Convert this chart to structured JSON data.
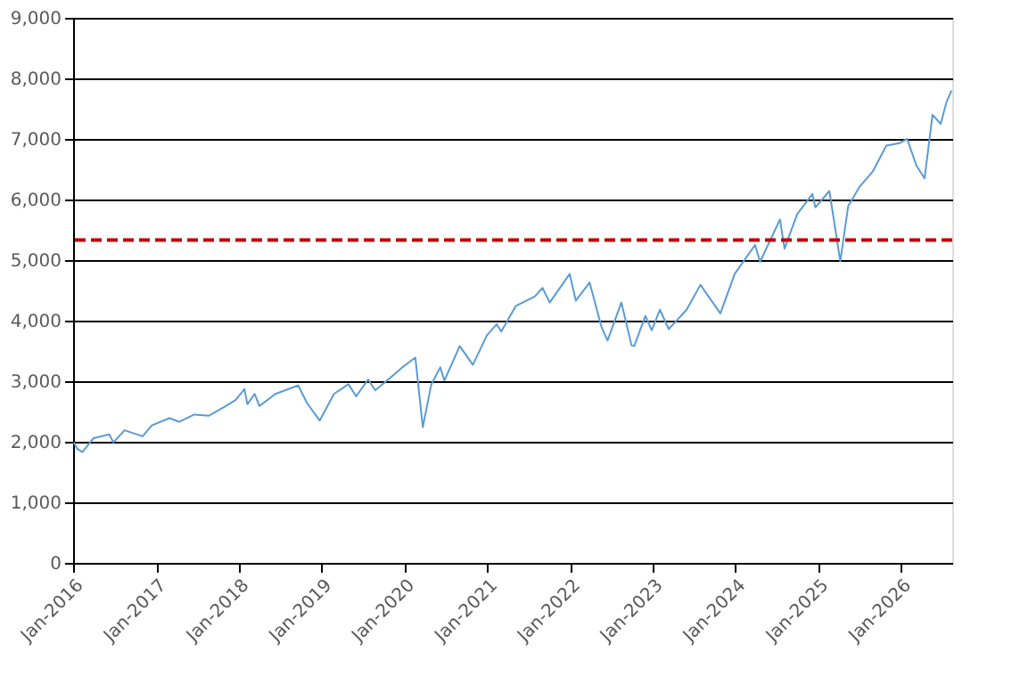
{
  "chart_data": {
    "type": "line",
    "x": [
      "2016-01-04",
      "2016-01-20",
      "2016-02-11",
      "2016-03-31",
      "2016-06-08",
      "2016-06-27",
      "2016-08-15",
      "2016-11-03",
      "2016-12-13",
      "2017-03-01",
      "2017-04-13",
      "2017-06-19",
      "2017-08-21",
      "2017-10-31",
      "2017-12-18",
      "2018-01-26",
      "2018-02-08",
      "2018-03-12",
      "2018-04-02",
      "2018-06-12",
      "2018-09-20",
      "2018-10-29",
      "2018-12-24",
      "2019-02-25",
      "2019-04-30",
      "2019-06-03",
      "2019-07-26",
      "2019-08-26",
      "2019-10-30",
      "2019-12-27",
      "2020-02-19",
      "2020-03-23",
      "2020-04-29",
      "2020-06-08",
      "2020-06-26",
      "2020-09-02",
      "2020-10-30",
      "2020-12-31",
      "2021-02-12",
      "2021-03-04",
      "2021-05-07",
      "2021-07-30",
      "2021-09-02",
      "2021-10-04",
      "2021-12-31",
      "2022-01-27",
      "2022-03-29",
      "2022-05-20",
      "2022-06-16",
      "2022-08-16",
      "2022-09-30",
      "2022-10-12",
      "2022-11-30",
      "2022-12-28",
      "2023-02-02",
      "2023-03-13",
      "2023-05-31",
      "2023-07-31",
      "2023-10-27",
      "2023-12-29",
      "2024-03-28",
      "2024-04-19",
      "2024-07-16",
      "2024-08-05",
      "2024-09-30",
      "2024-12-06",
      "2024-12-19",
      "2025-02-19",
      "2025-04-08",
      "2025-05-13",
      "2025-06-30",
      "2025-08-29",
      "2025-10-28",
      "2025-12-24",
      "2026-01-28",
      "2026-03-10",
      "2026-04-15",
      "2026-05-20",
      "2026-06-25",
      "2026-07-20",
      "2026-08-12"
    ],
    "series": [
      {
        "color": "#5b9bd5",
        "values": [
          1990,
          1880,
          1830,
          2060,
          2120,
          1990,
          2190,
          2090,
          2270,
          2390,
          2330,
          2450,
          2430,
          2580,
          2690,
          2870,
          2620,
          2790,
          2590,
          2790,
          2930,
          2640,
          2350,
          2790,
          2950,
          2750,
          3030,
          2850,
          3050,
          3240,
          3390,
          2240,
          2940,
          3230,
          3010,
          3580,
          3270,
          3760,
          3940,
          3820,
          4240,
          4400,
          4540,
          4300,
          4770,
          4330,
          4630,
          3900,
          3670,
          4300,
          3590,
          3580,
          4080,
          3840,
          4180,
          3860,
          4180,
          4590,
          4120,
          4770,
          5250,
          4970,
          5670,
          5190,
          5760,
          6090,
          5870,
          6140,
          4980,
          5890,
          6200,
          6460,
          6890,
          6930,
          7000,
          6560,
          6350,
          7400,
          7250,
          7600,
          7800
        ]
      }
    ],
    "ylim": [
      0,
      9000
    ],
    "yticks": [
      {
        "value": 0,
        "label": "0"
      },
      {
        "value": 1000,
        "label": "1,000"
      },
      {
        "value": 2000,
        "label": "2,000"
      },
      {
        "value": 3000,
        "label": "3,000"
      },
      {
        "value": 4000,
        "label": "4,000"
      },
      {
        "value": 5000,
        "label": "5,000"
      },
      {
        "value": 6000,
        "label": "6,000"
      },
      {
        "value": 7000,
        "label": "7,000"
      },
      {
        "value": 8000,
        "label": "8,000"
      },
      {
        "value": 9000,
        "label": "9,000"
      }
    ],
    "xlim": [
      "2016-01-01",
      "2026-08-15"
    ],
    "xticks": [
      {
        "value": "2016-01-01",
        "label": "Jan-2016"
      },
      {
        "value": "2017-01-01",
        "label": "Jan-2017"
      },
      {
        "value": "2018-01-01",
        "label": "Jan-2018"
      },
      {
        "value": "2019-01-01",
        "label": "Jan-2019"
      },
      {
        "value": "2020-01-01",
        "label": "Jan-2020"
      },
      {
        "value": "2021-01-01",
        "label": "Jan-2021"
      },
      {
        "value": "2022-01-01",
        "label": "Jan-2022"
      },
      {
        "value": "2023-01-01",
        "label": "Jan-2023"
      },
      {
        "value": "2024-01-01",
        "label": "Jan-2024"
      },
      {
        "value": "2025-01-01",
        "label": "Jan-2025"
      },
      {
        "value": "2026-01-01",
        "label": "Jan-2026"
      }
    ],
    "grid": "y",
    "marker": "none",
    "line_style": "solid",
    "ref_lines": [
      {
        "axis": "y",
        "value": 5330,
        "color": "#c00000",
        "line_style": "dashed"
      }
    ]
  }
}
